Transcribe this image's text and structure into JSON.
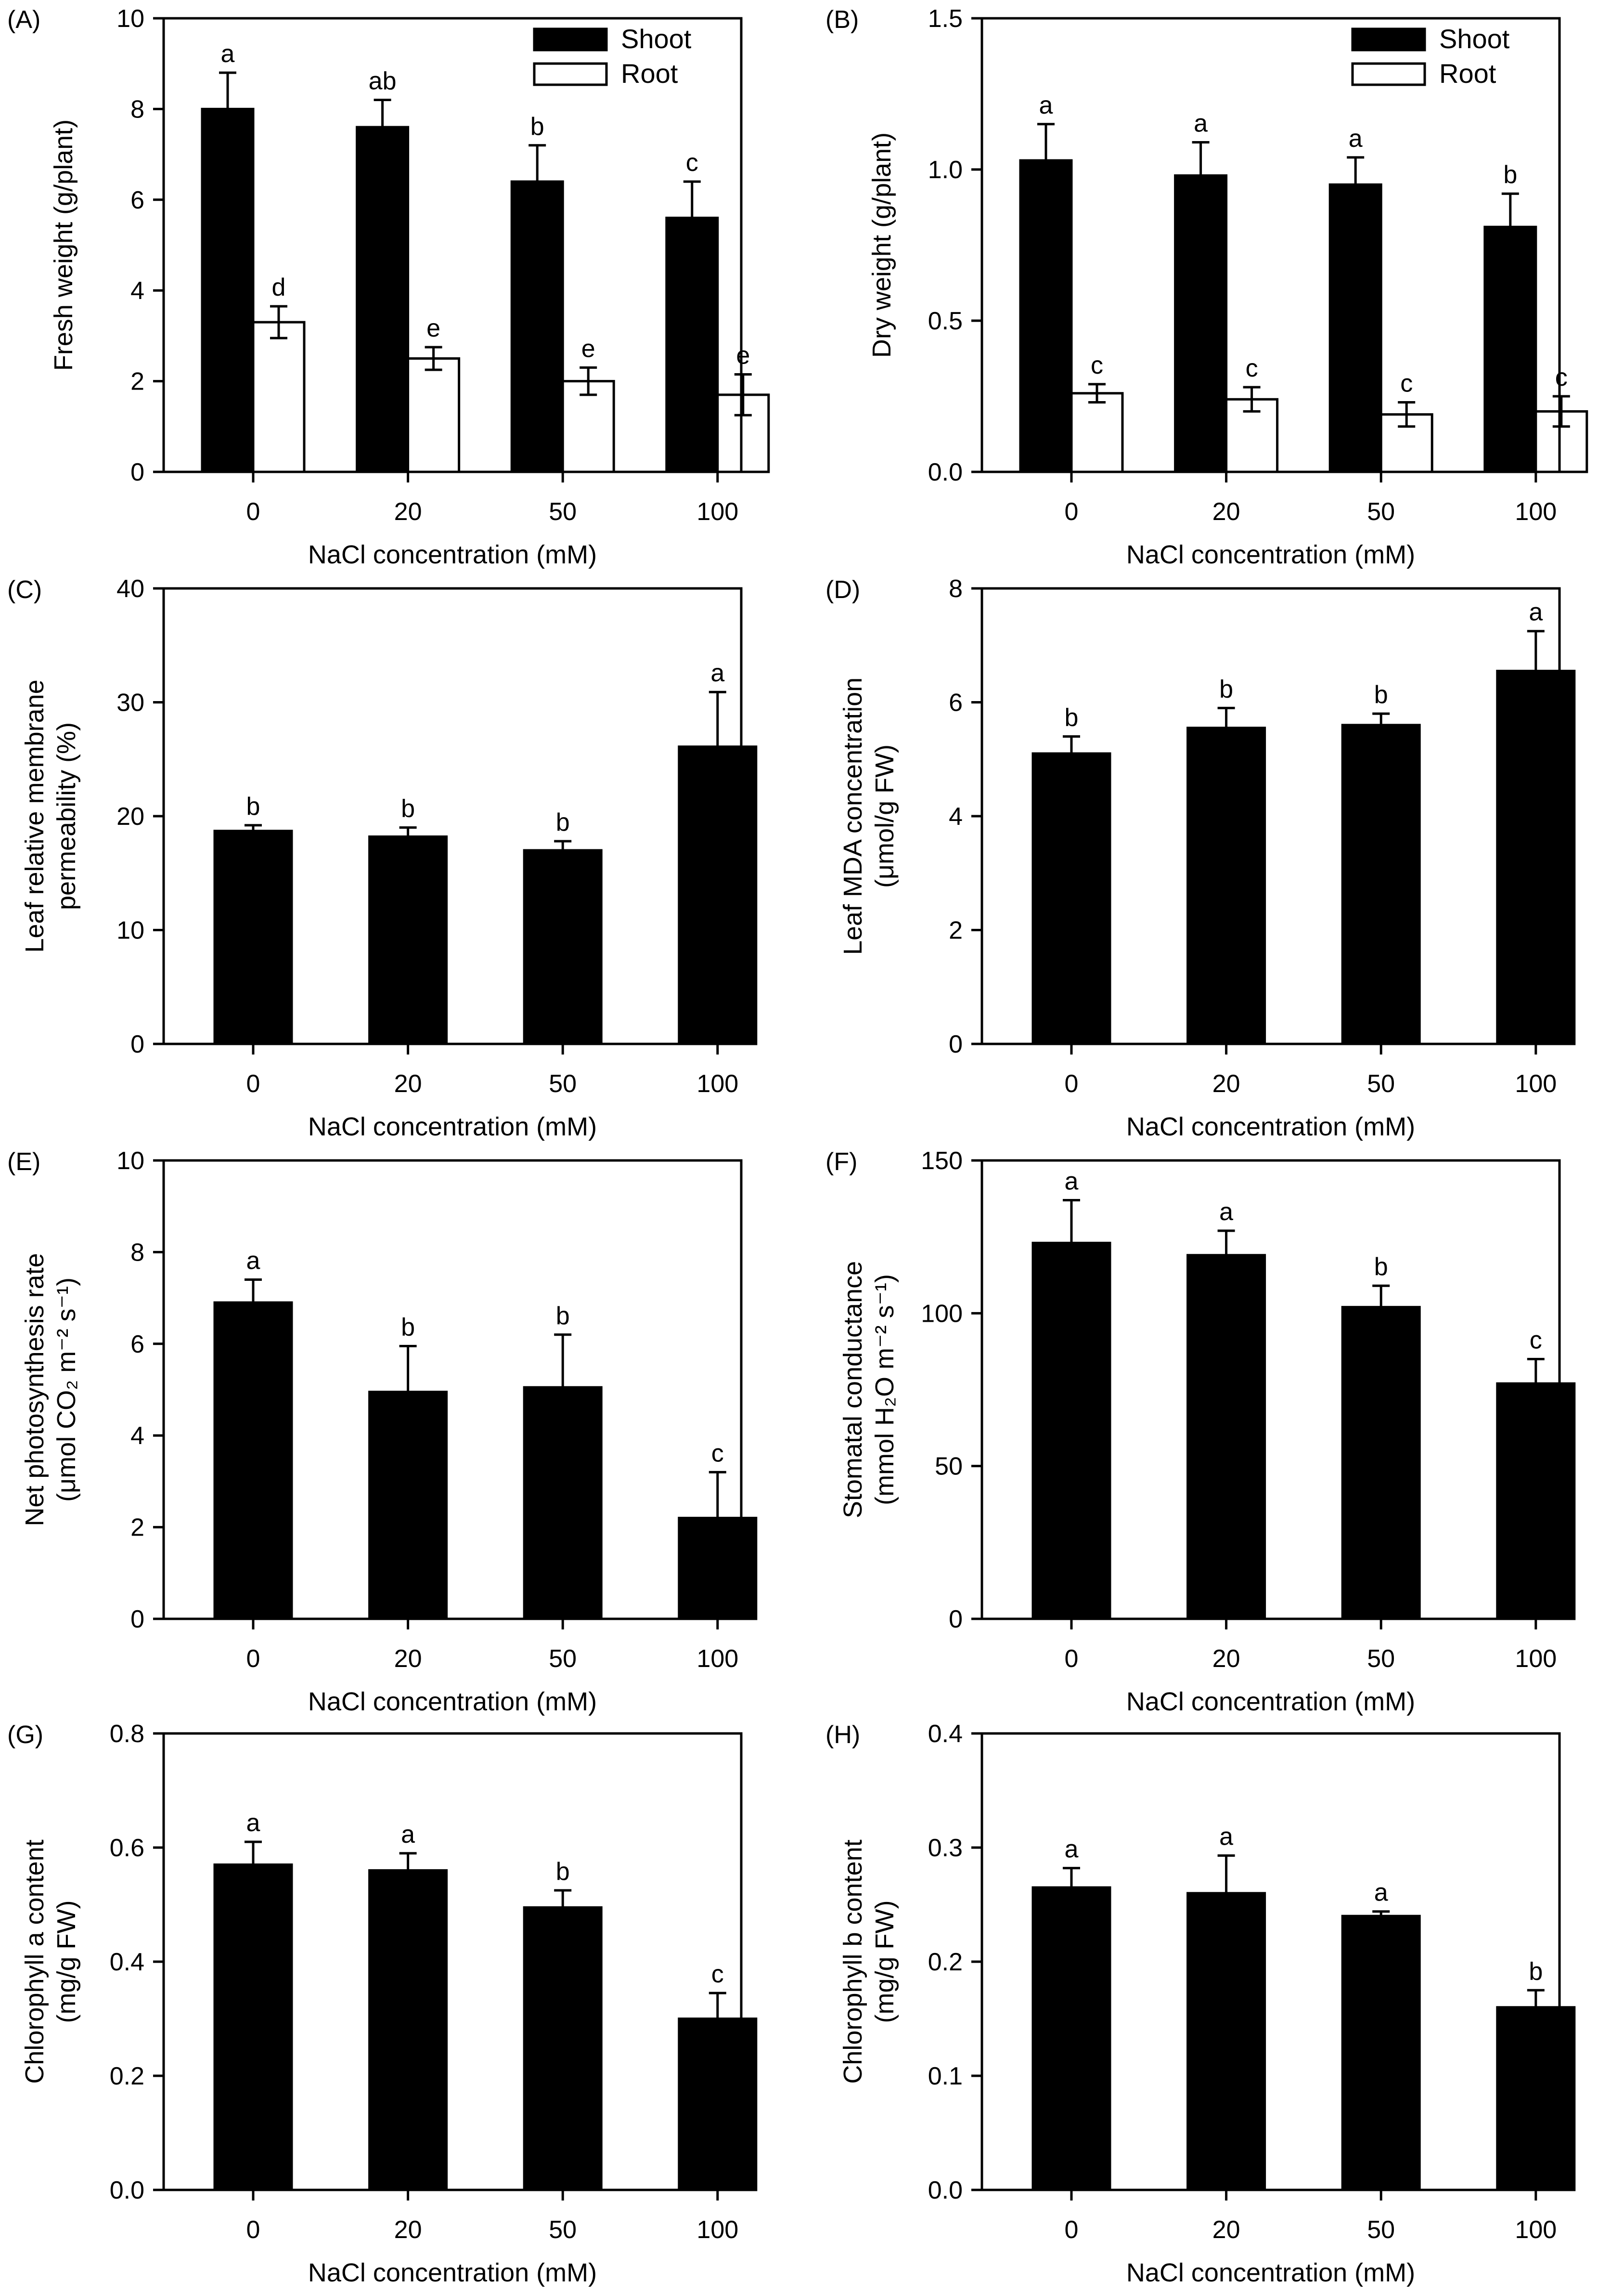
{
  "chart_data": [
    {
      "panel": "(A)",
      "type": "bar",
      "categories": [
        "0",
        "20",
        "50",
        "100"
      ],
      "xlabel": "NaCl concentration (mM)",
      "ylabel": [
        "Fresh weight (g/plant)"
      ],
      "ylim": [
        0,
        10
      ],
      "yticks": [
        "0",
        "2",
        "4",
        "6",
        "8",
        "10"
      ],
      "legend": "top-right",
      "series": [
        {
          "name": "Shoot",
          "fill": "#000000",
          "values": [
            8.0,
            7.6,
            6.4,
            5.6
          ],
          "errors": [
            0.8,
            0.6,
            0.8,
            0.8
          ],
          "sig": [
            "a",
            "ab",
            "b",
            "c"
          ]
        },
        {
          "name": "Root",
          "fill": "#ffffff",
          "values": [
            3.3,
            2.5,
            2.0,
            1.7
          ],
          "errors": [
            0.35,
            0.25,
            0.3,
            0.45
          ],
          "sig": [
            "d",
            "e",
            "e",
            "e"
          ]
        }
      ]
    },
    {
      "panel": "(B)",
      "type": "bar",
      "categories": [
        "0",
        "20",
        "50",
        "100"
      ],
      "xlabel": "NaCl concentration (mM)",
      "ylabel": [
        "Dry weight (g/plant)"
      ],
      "ylim": [
        0,
        1.5
      ],
      "yticks": [
        "0.0",
        "0.5",
        "1.0",
        "1.5"
      ],
      "legend": "top-right",
      "series": [
        {
          "name": "Shoot",
          "fill": "#000000",
          "values": [
            1.03,
            0.98,
            0.95,
            0.81
          ],
          "errors": [
            0.12,
            0.11,
            0.09,
            0.11
          ],
          "sig": [
            "a",
            "a",
            "a",
            "b"
          ]
        },
        {
          "name": "Root",
          "fill": "#ffffff",
          "values": [
            0.26,
            0.24,
            0.19,
            0.2
          ],
          "errors": [
            0.03,
            0.04,
            0.04,
            0.05
          ],
          "sig": [
            "c",
            "c",
            "c",
            "c"
          ]
        }
      ]
    },
    {
      "panel": "(C)",
      "type": "bar",
      "categories": [
        "0",
        "20",
        "50",
        "100"
      ],
      "xlabel": "NaCl concentration (mM)",
      "ylabel": [
        "Leaf relative membrane",
        "permeability (%)"
      ],
      "ylim": [
        0,
        40
      ],
      "yticks": [
        "0",
        "10",
        "20",
        "30",
        "40"
      ],
      "series": [
        {
          "name": "",
          "fill": "#000000",
          "values": [
            18.7,
            18.2,
            17.0,
            26.1
          ],
          "errors": [
            0.5,
            0.8,
            0.8,
            4.8
          ],
          "sig": [
            "b",
            "b",
            "b",
            "a"
          ]
        }
      ]
    },
    {
      "panel": "(D)",
      "type": "bar",
      "categories": [
        "0",
        "20",
        "50",
        "100"
      ],
      "xlabel": "NaCl concentration (mM)",
      "ylabel": [
        "Leaf MDA concentration",
        "(μmol/g FW)"
      ],
      "ylim": [
        0,
        8
      ],
      "yticks": [
        "0",
        "2",
        "4",
        "6",
        "8"
      ],
      "series": [
        {
          "name": "",
          "fill": "#000000",
          "values": [
            5.1,
            5.55,
            5.6,
            6.55
          ],
          "errors": [
            0.3,
            0.35,
            0.2,
            0.7
          ],
          "sig": [
            "b",
            "b",
            "b",
            "a"
          ]
        }
      ]
    },
    {
      "panel": "(E)",
      "type": "bar",
      "categories": [
        "0",
        "20",
        "50",
        "100"
      ],
      "xlabel": "NaCl concentration (mM)",
      "ylabel": [
        "Net photosynthesis rate",
        "(μmol CO₂ m⁻² s⁻¹)"
      ],
      "ylim": [
        0,
        10
      ],
      "yticks": [
        "0",
        "2",
        "4",
        "6",
        "8",
        "10"
      ],
      "series": [
        {
          "name": "",
          "fill": "#000000",
          "values": [
            6.9,
            4.95,
            5.05,
            2.2
          ],
          "errors": [
            0.5,
            1.0,
            1.15,
            1.0
          ],
          "sig": [
            "a",
            "b",
            "b",
            "c"
          ]
        }
      ]
    },
    {
      "panel": "(F)",
      "type": "bar",
      "categories": [
        "0",
        "20",
        "50",
        "100"
      ],
      "xlabel": "NaCl concentration (mM)",
      "ylabel": [
        "Stomatal conductance",
        "(mmol H₂O m⁻² s⁻¹)"
      ],
      "ylim": [
        0,
        150
      ],
      "yticks": [
        "0",
        "50",
        "100",
        "150"
      ],
      "series": [
        {
          "name": "",
          "fill": "#000000",
          "values": [
            123,
            119,
            102,
            77
          ],
          "errors": [
            14,
            8,
            7,
            8
          ],
          "sig": [
            "a",
            "a",
            "b",
            "c"
          ]
        }
      ]
    },
    {
      "panel": "(G)",
      "type": "bar",
      "categories": [
        "0",
        "20",
        "50",
        "100"
      ],
      "xlabel": "NaCl concentration (mM)",
      "ylabel": [
        "Chlorophyll a content",
        "(mg/g FW)"
      ],
      "ylim": [
        0,
        0.8
      ],
      "yticks": [
        "0.0",
        "0.2",
        "0.4",
        "0.6",
        "0.8"
      ],
      "series": [
        {
          "name": "",
          "fill": "#000000",
          "values": [
            0.57,
            0.56,
            0.495,
            0.3
          ],
          "errors": [
            0.04,
            0.03,
            0.03,
            0.045
          ],
          "sig": [
            "a",
            "a",
            "b",
            "c"
          ]
        }
      ]
    },
    {
      "panel": "(H)",
      "type": "bar",
      "categories": [
        "0",
        "20",
        "50",
        "100"
      ],
      "xlabel": "NaCl concentration (mM)",
      "ylabel": [
        "Chlorophyll b content",
        "(mg/g FW)"
      ],
      "ylim": [
        0,
        0.4
      ],
      "yticks": [
        "0.0",
        "0.1",
        "0.2",
        "0.3",
        "0.4"
      ],
      "series": [
        {
          "name": "",
          "fill": "#000000",
          "values": [
            0.265,
            0.26,
            0.24,
            0.16
          ],
          "errors": [
            0.017,
            0.033,
            0.004,
            0.015
          ],
          "sig": [
            "a",
            "a",
            "a",
            "b"
          ]
        }
      ]
    }
  ]
}
